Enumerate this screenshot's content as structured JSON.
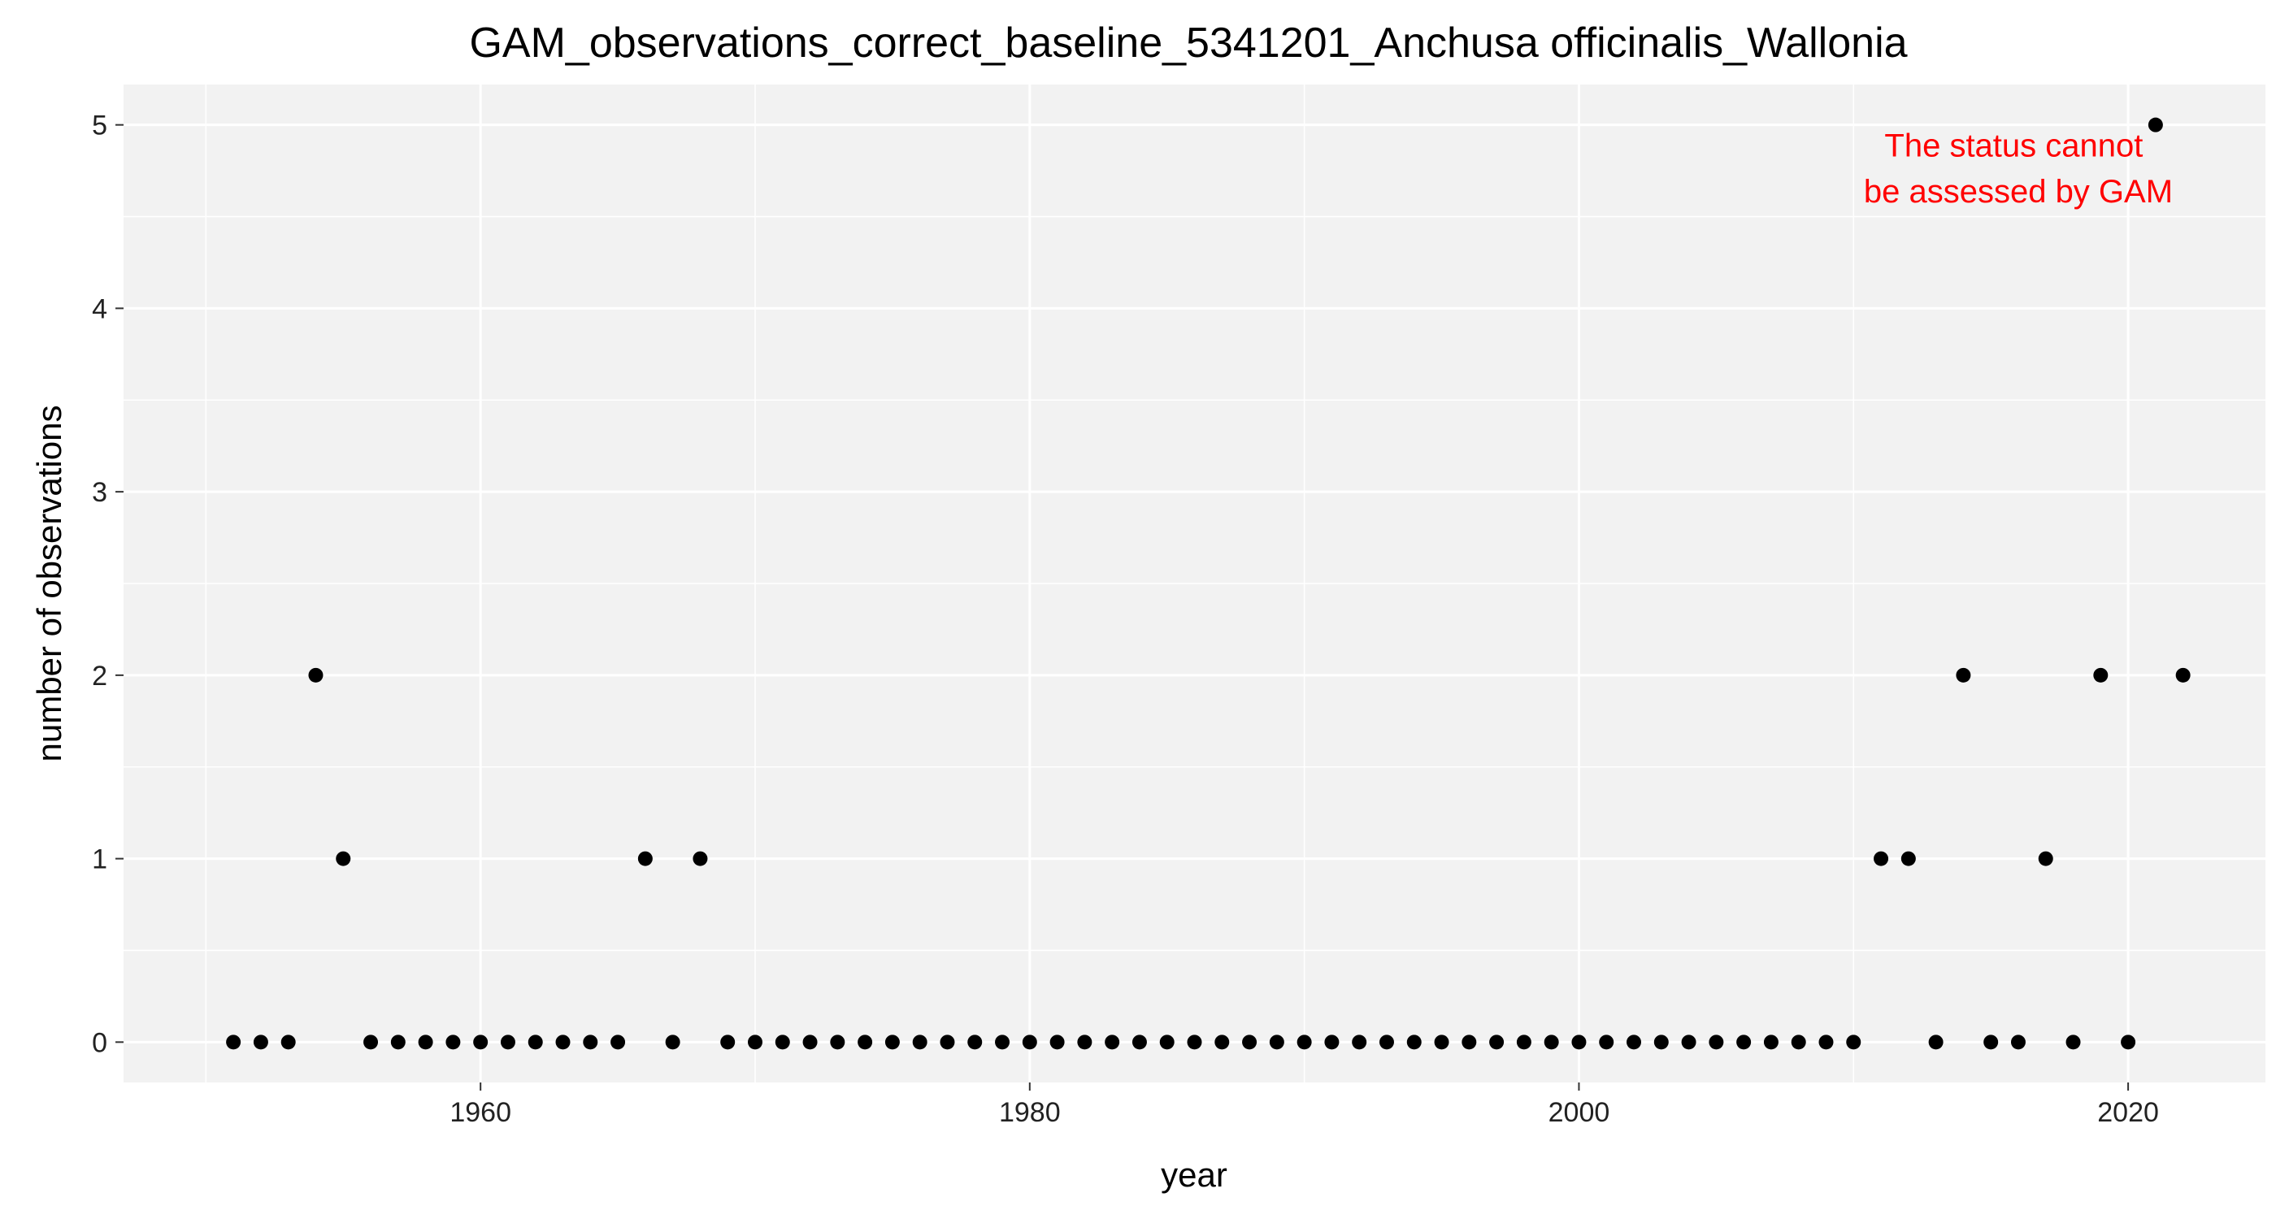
{
  "chart_data": {
    "type": "scatter",
    "title": "GAM_observations_correct_baseline_5341201_Anchusa officinalis_Wallonia",
    "xlabel": "year",
    "ylabel": "number of observations",
    "xlim": [
      1947,
      2025
    ],
    "ylim": [
      -0.22,
      5.22
    ],
    "x_ticks": [
      1960,
      1980,
      2000,
      2020
    ],
    "y_ticks": [
      0,
      1,
      2,
      3,
      4,
      5
    ],
    "x_minor_ticks": [
      1950,
      1970,
      1990,
      2010
    ],
    "y_minor_ticks": [
      0.5,
      1.5,
      2.5,
      3.5,
      4.5
    ],
    "grid": true,
    "legend": "none",
    "x": [
      1951,
      1952,
      1953,
      1954,
      1955,
      1956,
      1957,
      1958,
      1959,
      1960,
      1961,
      1962,
      1963,
      1964,
      1965,
      1966,
      1967,
      1968,
      1969,
      1970,
      1971,
      1972,
      1973,
      1974,
      1975,
      1976,
      1977,
      1978,
      1979,
      1980,
      1981,
      1982,
      1983,
      1984,
      1985,
      1986,
      1987,
      1988,
      1989,
      1990,
      1991,
      1992,
      1993,
      1994,
      1995,
      1996,
      1997,
      1998,
      1999,
      2000,
      2001,
      2002,
      2003,
      2004,
      2005,
      2006,
      2007,
      2008,
      2009,
      2010,
      2011,
      2012,
      2013,
      2014,
      2015,
      2016,
      2017,
      2018,
      2019,
      2020,
      2021,
      2022
    ],
    "y": [
      0,
      0,
      0,
      2,
      1,
      0,
      0,
      0,
      0,
      0,
      0,
      0,
      0,
      0,
      0,
      1,
      0,
      1,
      0,
      0,
      0,
      0,
      0,
      0,
      0,
      0,
      0,
      0,
      0,
      0,
      0,
      0,
      0,
      0,
      0,
      0,
      0,
      0,
      0,
      0,
      0,
      0,
      0,
      0,
      0,
      0,
      0,
      0,
      0,
      0,
      0,
      0,
      0,
      0,
      0,
      0,
      0,
      0,
      0,
      0,
      1,
      1,
      0,
      2,
      0,
      0,
      1,
      0,
      2,
      0,
      5,
      2
    ],
    "annotation": {
      "lines": [
        "The status cannot",
        "be assessed by GAM"
      ],
      "color": "#ff0000"
    },
    "colors": {
      "panel_background": "#f2f2f2",
      "grid": "#ffffff",
      "points": "#000000"
    }
  }
}
